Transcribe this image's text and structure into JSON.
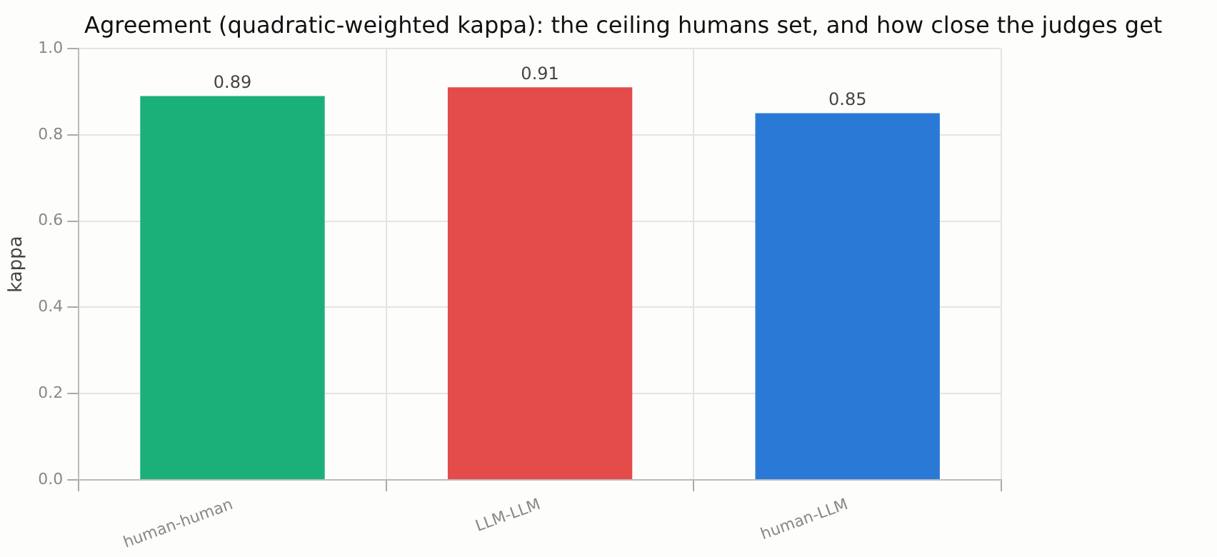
{
  "chart_data": {
    "type": "bar",
    "title": "Agreement (quadratic-weighted kappa): the ceiling humans set, and how close the judges get",
    "ylabel": "kappa",
    "categories": [
      "human-human",
      "LLM-LLM",
      "human-LLM"
    ],
    "values": [
      0.89,
      0.91,
      0.85
    ],
    "colors": [
      "#1bb07a",
      "#e44b4b",
      "#2a79d6"
    ],
    "ylim": [
      0,
      1
    ],
    "yticks": [
      {
        "value": 0,
        "label": "0.0"
      },
      {
        "value": 0.2,
        "label": "0.2"
      },
      {
        "value": 0.4,
        "label": "0.4"
      },
      {
        "value": 0.6,
        "label": "0.6"
      },
      {
        "value": 0.8,
        "label": "0.8"
      },
      {
        "value": 1,
        "label": "1.0"
      }
    ],
    "grid": true,
    "data_labels": true
  }
}
